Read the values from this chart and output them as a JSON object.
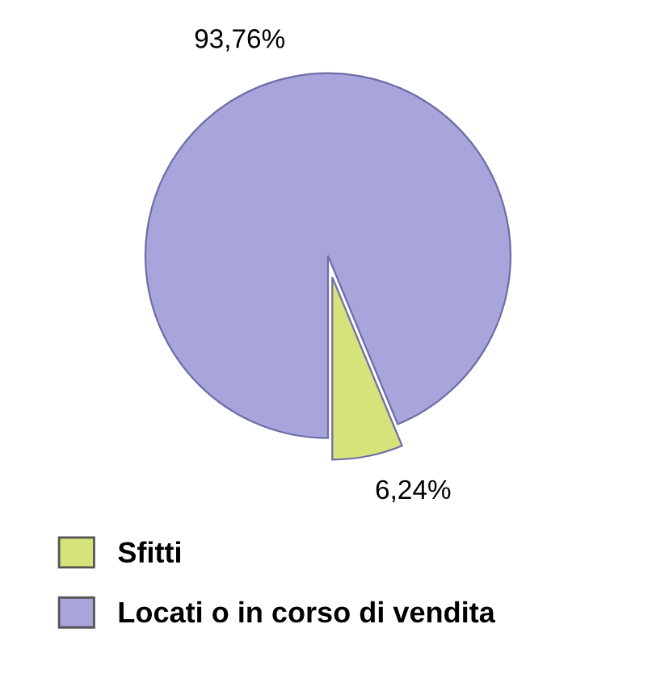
{
  "chart_data": {
    "type": "pie",
    "categories": [
      "Sfitti",
      "Locati o in corso di vendita"
    ],
    "values": [
      6.24,
      93.76
    ],
    "colors": [
      "#d6e27a",
      "#a8a5dc"
    ],
    "value_labels": [
      "6,24%",
      "93,76%"
    ],
    "legend": "bottom"
  }
}
